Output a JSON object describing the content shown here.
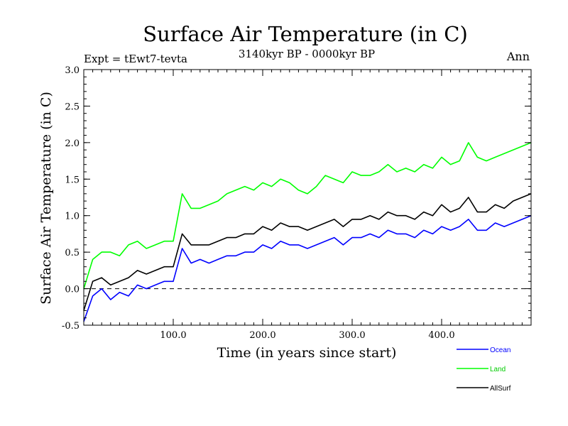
{
  "chart_data": {
    "type": "line",
    "title": "Surface Air Temperature (in C)",
    "subtitle": "3140kyr BP - 0000kyr BP",
    "experiment_label": "Expt = tEwt7-tevta",
    "season_label": "Ann",
    "xlabel": "Time (in years since start)",
    "ylabel": "Surface Air Temperature (in C)",
    "xlim": [
      0,
      500
    ],
    "ylim": [
      -0.5,
      3.0
    ],
    "x_ticks": [
      100,
      200,
      300,
      400
    ],
    "x_tick_labels": [
      "100.0",
      "200.0",
      "300.0",
      "400.0"
    ],
    "y_ticks": [
      -0.5,
      0.0,
      0.5,
      1.0,
      1.5,
      2.0,
      2.5,
      3.0
    ],
    "y_tick_labels": [
      "-0.5",
      "0.0",
      "0.5",
      "1.0",
      "1.5",
      "2.0",
      "2.5",
      "3.0"
    ],
    "reference_line_y": 0.0,
    "x": [
      0,
      10,
      20,
      30,
      40,
      50,
      60,
      70,
      80,
      90,
      100,
      110,
      120,
      130,
      140,
      150,
      160,
      170,
      180,
      190,
      200,
      210,
      220,
      230,
      240,
      250,
      260,
      270,
      280,
      290,
      300,
      310,
      320,
      330,
      340,
      350,
      360,
      370,
      380,
      390,
      400,
      410,
      420,
      430,
      440,
      450,
      460,
      470,
      480,
      490,
      500
    ],
    "series": [
      {
        "name": "Ocean",
        "color": "#0000ff",
        "values": [
          -0.45,
          -0.1,
          0.0,
          -0.15,
          -0.05,
          -0.1,
          0.05,
          0.0,
          0.05,
          0.1,
          0.1,
          0.55,
          0.35,
          0.4,
          0.35,
          0.4,
          0.45,
          0.45,
          0.5,
          0.5,
          0.6,
          0.55,
          0.65,
          0.6,
          0.6,
          0.55,
          0.6,
          0.65,
          0.7,
          0.6,
          0.7,
          0.7,
          0.75,
          0.7,
          0.8,
          0.75,
          0.75,
          0.7,
          0.8,
          0.75,
          0.85,
          0.8,
          0.85,
          0.95,
          0.8,
          0.8,
          0.9,
          0.85,
          0.9,
          0.95,
          1.0
        ]
      },
      {
        "name": "Land",
        "color": "#00ff00",
        "values": [
          0.0,
          0.4,
          0.5,
          0.5,
          0.45,
          0.6,
          0.65,
          0.55,
          0.6,
          0.65,
          0.65,
          1.3,
          1.1,
          1.1,
          1.15,
          1.2,
          1.3,
          1.35,
          1.4,
          1.35,
          1.45,
          1.4,
          1.5,
          1.45,
          1.35,
          1.3,
          1.4,
          1.55,
          1.5,
          1.45,
          1.6,
          1.55,
          1.55,
          1.6,
          1.7,
          1.6,
          1.65,
          1.6,
          1.7,
          1.65,
          1.8,
          1.7,
          1.75,
          2.0,
          1.8,
          1.75,
          1.8,
          1.85,
          1.9,
          1.95,
          2.0
        ]
      },
      {
        "name": "AllSurf",
        "color": "#000000",
        "values": [
          -0.3,
          0.1,
          0.15,
          0.05,
          0.1,
          0.15,
          0.25,
          0.2,
          0.25,
          0.3,
          0.3,
          0.75,
          0.6,
          0.6,
          0.6,
          0.65,
          0.7,
          0.7,
          0.75,
          0.75,
          0.85,
          0.8,
          0.9,
          0.85,
          0.85,
          0.8,
          0.85,
          0.9,
          0.95,
          0.85,
          0.95,
          0.95,
          1.0,
          0.95,
          1.05,
          1.0,
          1.0,
          0.95,
          1.05,
          1.0,
          1.15,
          1.05,
          1.1,
          1.25,
          1.05,
          1.05,
          1.15,
          1.1,
          1.2,
          1.25,
          1.3
        ]
      }
    ]
  }
}
